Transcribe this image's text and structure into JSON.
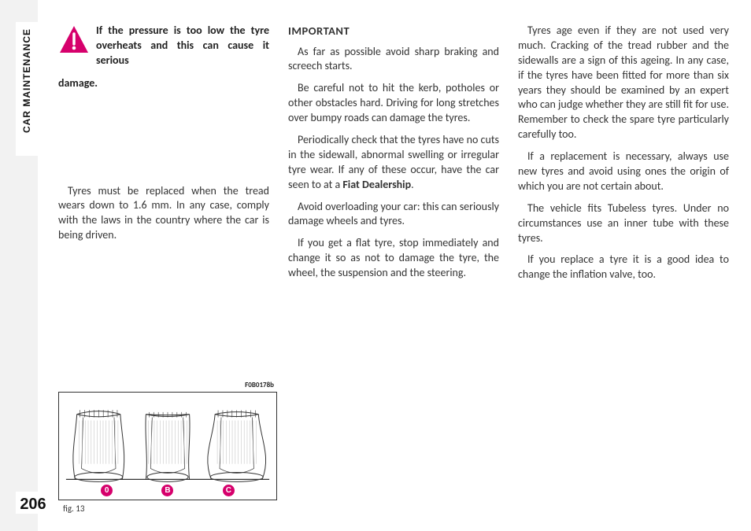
{
  "side_tab": "CAR MAINTENANCE",
  "page_number": "206",
  "column1": {
    "warning": {
      "icon_bg": "#d6006c",
      "icon_fg": "#ffffff",
      "text_part1": "If the pressure is too low the tyre overheats and this can cause it serious",
      "text_part2": "damage."
    },
    "p1": "Tyres must be replaced when the tread wears down to 1.6 mm. In any case, comply with the laws in the country where the car is being driven."
  },
  "column2": {
    "heading": "IMPORTANT",
    "p1": "As far as possible avoid sharp braking and screech starts.",
    "p2": "Be careful not to hit the kerb, potholes or other obstacles hard. Driving for long stretches over bumpy roads can damage the tyres.",
    "p3_a": "Periodically check that the tyres have no cuts in the sidewall, abnormal swelling or irregular tyre wear. If any of these occur, have the car seen to at a ",
    "p3_bold": "Fiat Dealership",
    "p3_b": ".",
    "p4": "Avoid overloading your car: this can seriously damage wheels and tyres.",
    "p5": "If you get a flat tyre, stop immediately and change it so as not to damage the tyre, the wheel, the suspension and the steering."
  },
  "column3": {
    "p1": "Tyres age even if they are not used very much. Cracking of the tread rubber and the sidewalls are a sign of this ageing. In any case, if the tyres have been fitted for more than six years they should be examined by an expert who can judge whether they are still fit for use. Remember to check the spare tyre particularly carefully too.",
    "p2": "If a replacement is necessary, always use new tyres and avoid using ones the origin of which you are not certain about.",
    "p3": "The vehicle fits Tubeless tyres. Under no circumstances use an inner tube with these tyres.",
    "p4": "If you replace a tyre it is a good idea to change the inflation valve, too."
  },
  "figure": {
    "code": "F0B0178b",
    "caption": "fig. 13",
    "badge_color": "#d6006c",
    "badges": [
      "0",
      "B",
      "C"
    ],
    "stroke": "#333333",
    "tyres": [
      {
        "top_arc": -8,
        "bottom_flare": 6
      },
      {
        "top_arc": 6,
        "bottom_flare": -3
      },
      {
        "top_arc": -6,
        "bottom_flare": 12
      }
    ]
  }
}
